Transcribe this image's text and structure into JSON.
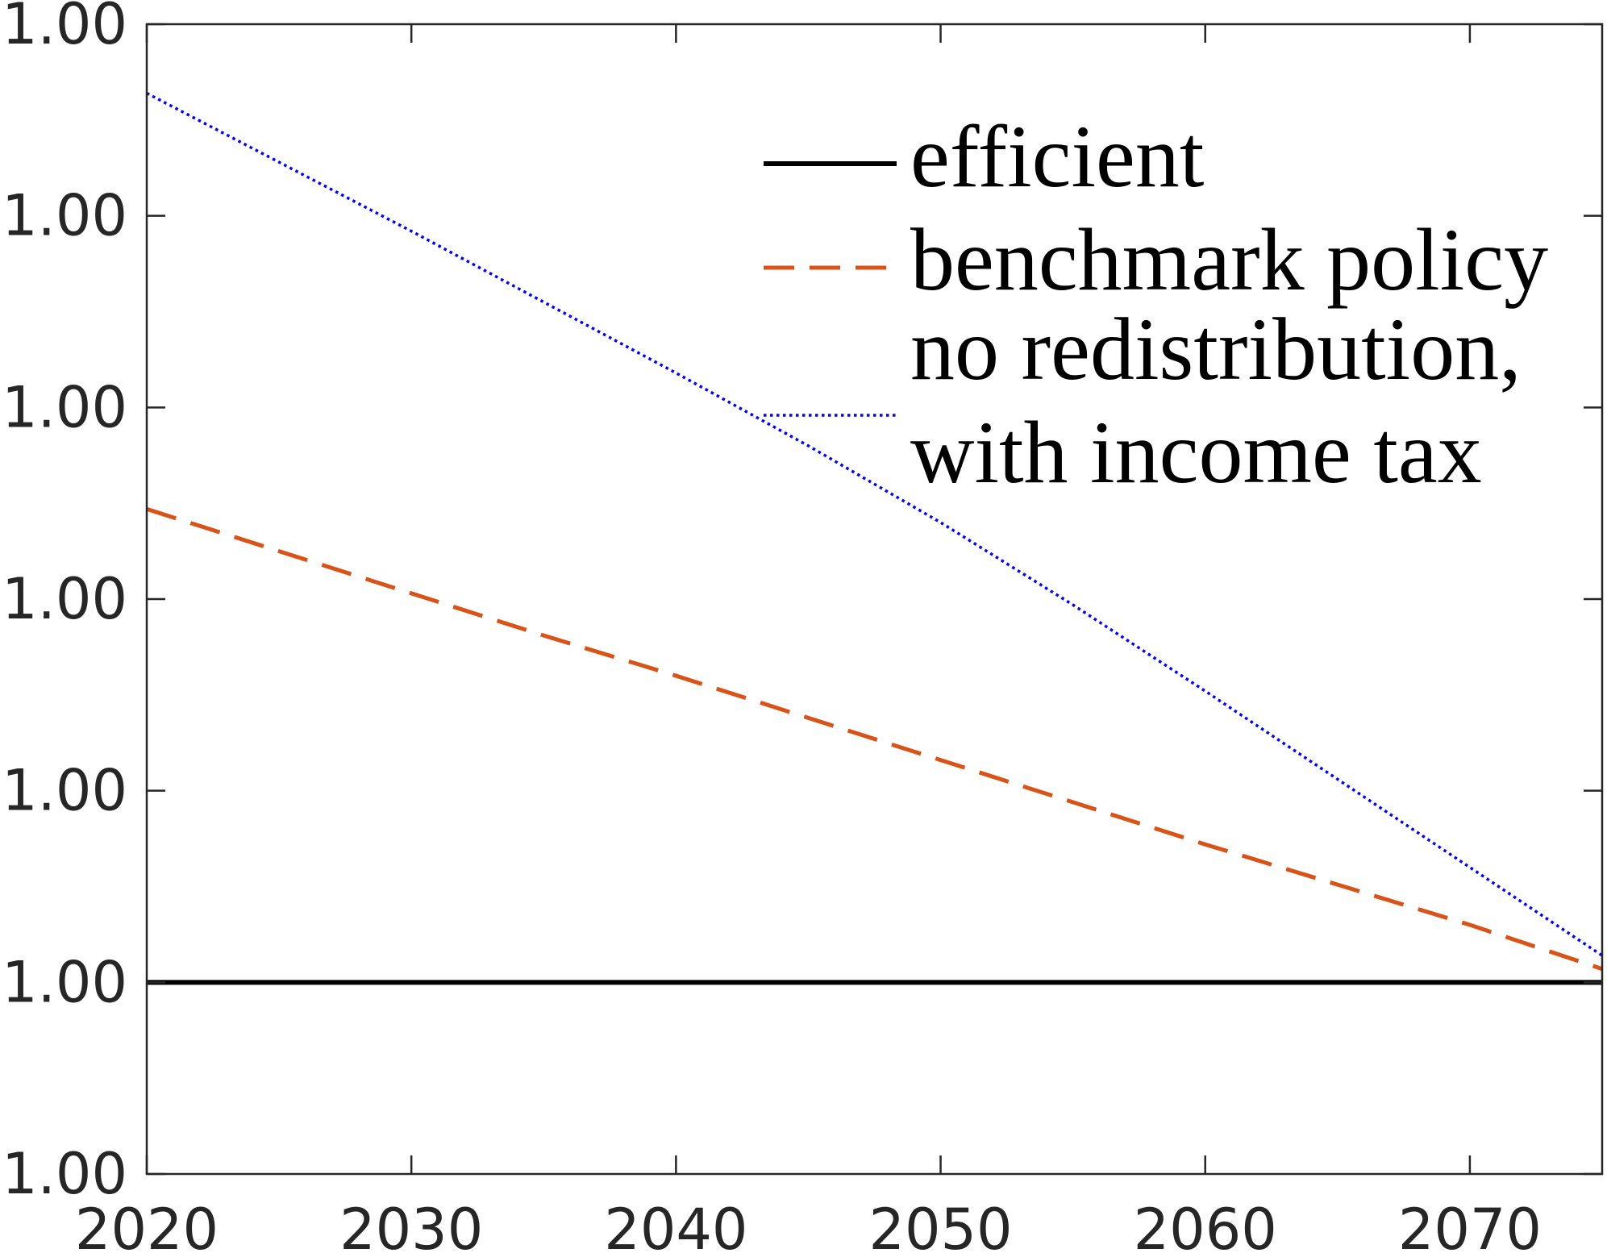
{
  "chart_data": {
    "type": "line",
    "title": "",
    "xlabel": "",
    "ylabel": "",
    "grid": false,
    "legend_position": "top-right",
    "x": [
      2020,
      2025,
      2030,
      2035,
      2040,
      2045,
      2050,
      2055,
      2060,
      2065,
      2070,
      2075
    ],
    "xlim": [
      2020,
      2075
    ],
    "xticks": [
      2020,
      2030,
      2040,
      2050,
      2060,
      2070
    ],
    "xtick_labels": [
      "2020",
      "2030",
      "2040",
      "2050",
      "2060",
      "2070"
    ],
    "ylim": [
      0.9999,
      1.0005
    ],
    "yticks": [
      0.9999,
      1.0,
      1.0001,
      1.0002,
      1.0003,
      1.0004,
      1.0005
    ],
    "ytick_labels": [
      "1.00",
      "1.00",
      "1.00",
      "1.00",
      "1.00",
      "1.00",
      "1.00"
    ],
    "series": [
      {
        "name": "efficient",
        "color": "#000000",
        "style": "solid",
        "values": [
          1.0,
          1.0,
          1.0,
          1.0,
          1.0,
          1.0,
          1.0,
          1.0,
          1.0,
          1.0,
          1.0,
          1.0
        ]
      },
      {
        "name": "benchmark policy",
        "color": "#D95319",
        "style": "dashed",
        "values": [
          1.000247,
          1.000225,
          1.000203,
          1.000181,
          1.00016,
          1.000138,
          1.000116,
          1.000094,
          1.000072,
          1.000051,
          1.00003,
          1.000007
        ]
      },
      {
        "name": "no redistribution,\nwith income tax",
        "color": "#0000FF",
        "style": "dotted",
        "values": [
          1.000464,
          1.000428,
          1.000392,
          1.000355,
          1.000318,
          1.00028,
          1.00024,
          1.000197,
          1.000152,
          1.000106,
          1.00006,
          1.000014
        ]
      }
    ]
  }
}
